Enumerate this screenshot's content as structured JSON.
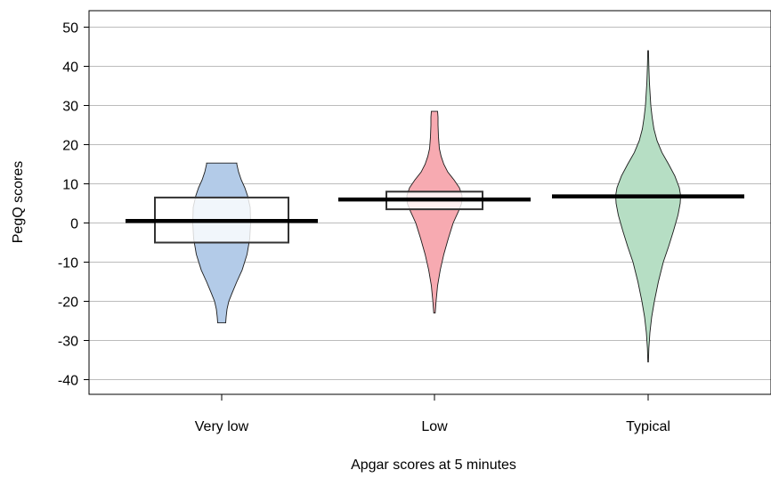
{
  "chart_data": {
    "type": "violin",
    "title": "",
    "xlabel": "Apgar scores at 5 minutes",
    "ylabel": "PegQ scores",
    "ylim": [
      -44,
      54
    ],
    "yticks": [
      -40,
      -30,
      -20,
      -10,
      0,
      10,
      20,
      30,
      40,
      50
    ],
    "grid": "horizontal",
    "legend": "none",
    "categories": [
      "Very low",
      "Low",
      "Typical"
    ],
    "groups": [
      {
        "name": "Very low",
        "color": "#b3cbe8",
        "mean": 0.5,
        "box": [
          -5,
          6.5
        ],
        "density": [
          [
            -25.5,
            4.5
          ],
          [
            -24,
            5
          ],
          [
            -22,
            6
          ],
          [
            -20,
            8
          ],
          [
            -18,
            11.5
          ],
          [
            -15,
            17
          ],
          [
            -12,
            23
          ],
          [
            -8,
            28.5
          ],
          [
            -4,
            31.5
          ],
          [
            0,
            32.5
          ],
          [
            4,
            32
          ],
          [
            7,
            29
          ],
          [
            9,
            26
          ],
          [
            11,
            22
          ],
          [
            13,
            19
          ],
          [
            15,
            17
          ],
          [
            15.3,
            17
          ]
        ]
      },
      {
        "name": "Low",
        "color": "#f7aab1",
        "mean": 6,
        "box": [
          3.5,
          8
        ],
        "density": [
          [
            -23,
            0.8
          ],
          [
            -20,
            1.8
          ],
          [
            -16,
            3.5
          ],
          [
            -12,
            6.5
          ],
          [
            -8,
            10.5
          ],
          [
            -4,
            15.5
          ],
          [
            0,
            21
          ],
          [
            3,
            27
          ],
          [
            5,
            30.5
          ],
          [
            7,
            31
          ],
          [
            9,
            28
          ],
          [
            11,
            22
          ],
          [
            13,
            15
          ],
          [
            15,
            10.5
          ],
          [
            17,
            7.5
          ],
          [
            19,
            5.5
          ],
          [
            22,
            4.5
          ],
          [
            25,
            4
          ],
          [
            27,
            4
          ],
          [
            28.5,
            3.5
          ]
        ]
      },
      {
        "name": "Typical",
        "color": "#b6dec4",
        "mean": 6.8,
        "density": [
          [
            -35.5,
            0.3
          ],
          [
            -32,
            0.8
          ],
          [
            -28,
            2
          ],
          [
            -24,
            4
          ],
          [
            -20,
            7
          ],
          [
            -15,
            11.5
          ],
          [
            -10,
            17
          ],
          [
            -6,
            23
          ],
          [
            -2,
            28.5
          ],
          [
            2,
            33.5
          ],
          [
            5,
            36
          ],
          [
            7,
            36.5
          ],
          [
            9,
            35
          ],
          [
            12,
            30
          ],
          [
            15,
            23
          ],
          [
            18,
            15.5
          ],
          [
            21,
            10
          ],
          [
            24,
            6.5
          ],
          [
            27,
            4.5
          ],
          [
            30,
            3
          ],
          [
            33,
            2.2
          ],
          [
            36,
            1.4
          ],
          [
            40,
            0.8
          ],
          [
            44,
            0.4
          ]
        ]
      }
    ]
  }
}
